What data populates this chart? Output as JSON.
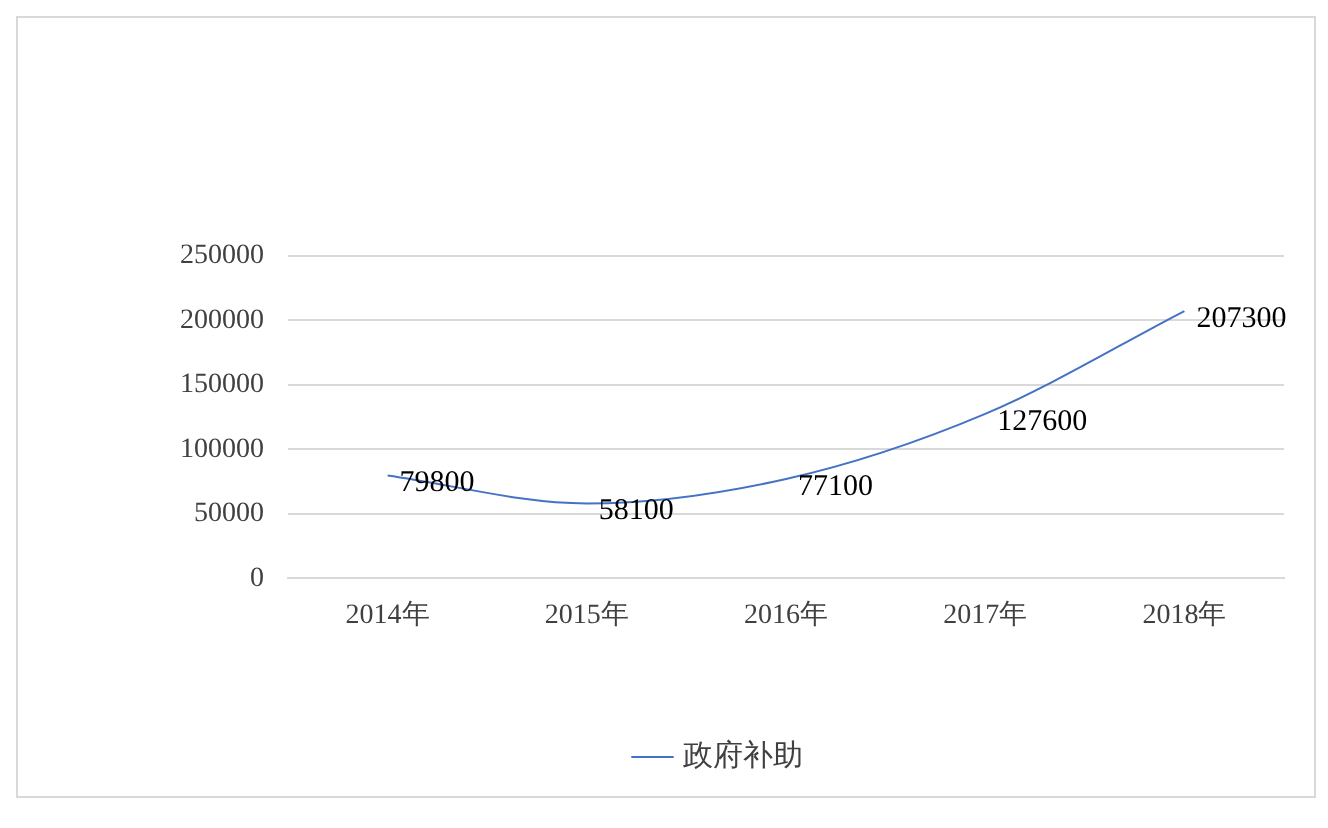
{
  "chart_data": {
    "type": "line",
    "categories": [
      "2014年",
      "2015年",
      "2016年",
      "2017年",
      "2018年"
    ],
    "series": [
      {
        "name": "政府补助",
        "color": "#4472c4",
        "values": [
          79800,
          58100,
          77100,
          127600,
          207300
        ]
      }
    ],
    "ylim": [
      0,
      250000
    ],
    "yticks": [
      0,
      50000,
      100000,
      150000,
      200000,
      250000
    ],
    "grid": "y",
    "legend": "bottom",
    "data_labels": true,
    "marker": "none",
    "line_style": "solid"
  }
}
